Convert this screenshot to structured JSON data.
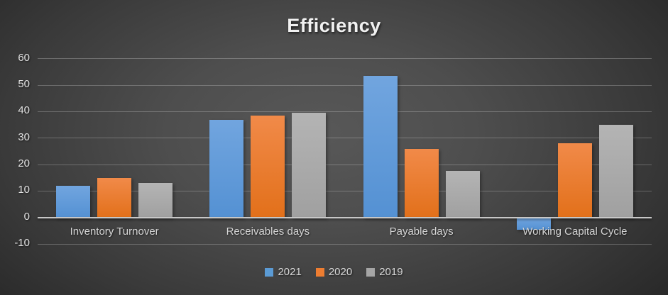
{
  "chart_data": {
    "type": "bar",
    "title": "Efficiency",
    "categories": [
      "Inventory Turnover",
      "Receivables days",
      "Payable days",
      "Working Capital Cycle"
    ],
    "series": [
      {
        "name": "2021",
        "color": "#5B9BD5",
        "color_top": "#71A5DF",
        "color_bottom": "#5491D3",
        "values": [
          12,
          37,
          53.5,
          -4.5
        ]
      },
      {
        "name": "2020",
        "color": "#ED7D31",
        "color_top": "#F18A49",
        "color_bottom": "#E2701A",
        "values": [
          15,
          38.5,
          26,
          28
        ]
      },
      {
        "name": "2019",
        "color": "#A5A5A5",
        "color_top": "#B4B4B4",
        "color_bottom": "#A0A0A0",
        "values": [
          13,
          39.5,
          17.5,
          35
        ]
      }
    ],
    "ylim": [
      -10,
      60
    ],
    "ytick_step": 10,
    "grid": true,
    "legend_position": "bottom",
    "background": "dark-gradient",
    "colors": {
      "title_text": "#f1f1f1",
      "axis_text": "#e2e2e2",
      "gridline": "rgba(255,255,255,0.24)",
      "zero_line": "#c7c7c7"
    }
  }
}
